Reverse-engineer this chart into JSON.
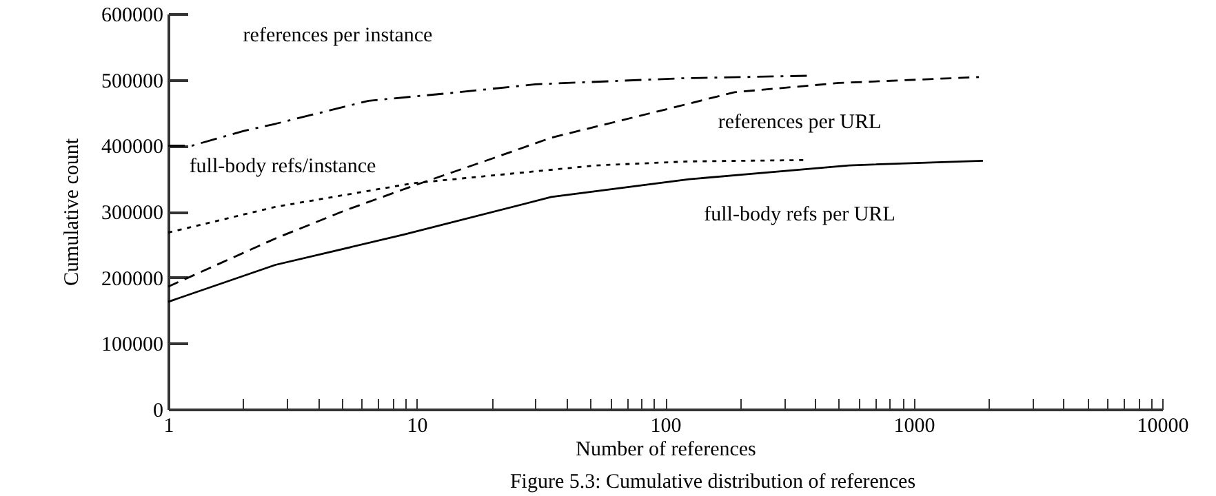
{
  "chart_data": {
    "type": "line",
    "xlabel": "Number of references",
    "ylabel": "Cumulative count",
    "log": "x",
    "grid": false,
    "xlim": [
      1,
      10000
    ],
    "ylim": [
      0,
      600000
    ],
    "xticks": [
      1,
      {
        "value": 2,
        "label": null
      },
      {
        "value": 3,
        "label": null
      },
      {
        "value": 4,
        "label": null
      },
      {
        "value": 5,
        "label": null
      },
      {
        "value": 6,
        "label": null
      },
      {
        "value": 7,
        "label": null
      },
      {
        "value": 8,
        "label": null
      },
      {
        "value": 9,
        "label": null
      },
      10,
      {
        "value": 20,
        "label": null
      },
      {
        "value": 30,
        "label": null
      },
      {
        "value": 40,
        "label": null
      },
      {
        "value": 50,
        "label": null
      },
      {
        "value": 60,
        "label": null
      },
      {
        "value": 70,
        "label": null
      },
      {
        "value": 80,
        "label": null
      },
      {
        "value": 90,
        "label": null
      },
      100,
      {
        "value": 200,
        "label": null
      },
      {
        "value": 300,
        "label": null
      },
      {
        "value": 400,
        "label": null
      },
      {
        "value": 500,
        "label": null
      },
      {
        "value": 600,
        "label": null
      },
      {
        "value": 700,
        "label": null
      },
      {
        "value": 800,
        "label": null
      },
      {
        "value": 900,
        "label": null
      },
      1000,
      {
        "value": 2000,
        "label": null
      },
      {
        "value": 3000,
        "label": null
      },
      {
        "value": 4000,
        "label": null
      },
      {
        "value": 5000,
        "label": null
      },
      {
        "value": 6000,
        "label": null
      },
      {
        "value": 7000,
        "label": null
      },
      {
        "value": 8000,
        "label": null
      },
      {
        "value": 9000,
        "label": null
      },
      10000
    ],
    "yticks": [
      0,
      100000,
      200000,
      300000,
      400000,
      500000,
      600000
    ],
    "series": [
      {
        "name": "references per instance",
        "color": "#000000",
        "line_style": "dashdot",
        "x": [
          1,
          1.25,
          2,
          2.7,
          6.4,
          14.8,
          30,
          114,
          380
        ],
        "values": [
          400000,
          400000,
          422000,
          433000,
          468000,
          481000,
          493000,
          502000,
          506000
        ]
      },
      {
        "name": "references per URL",
        "color": "#000000",
        "line_style": "dashed",
        "x": [
          1,
          2.7,
          5.1,
          9.7,
          20,
          34.8,
          114,
          190,
          500,
          1830
        ],
        "values": [
          186000,
          259000,
          301000,
          339000,
          380000,
          412000,
          460000,
          481000,
          495000,
          504000
        ]
      },
      {
        "name": "full-body refs/instance",
        "color": "#000000",
        "line_style": "dotted",
        "x": [
          1,
          2.7,
          9.7,
          53,
          125,
          362
        ],
        "values": [
          268000,
          307000,
          343000,
          370000,
          376000,
          378000
        ]
      },
      {
        "name": "full-body refs per URL",
        "color": "#000000",
        "line_style": "solid",
        "x": [
          1,
          2.7,
          8.9,
          34.8,
          125,
          550,
          1900
        ],
        "values": [
          163000,
          219000,
          265000,
          322000,
          349000,
          370000,
          377000
        ]
      }
    ],
    "annotations": [
      "Figure 5.3: Cumulative distribution of references"
    ]
  }
}
